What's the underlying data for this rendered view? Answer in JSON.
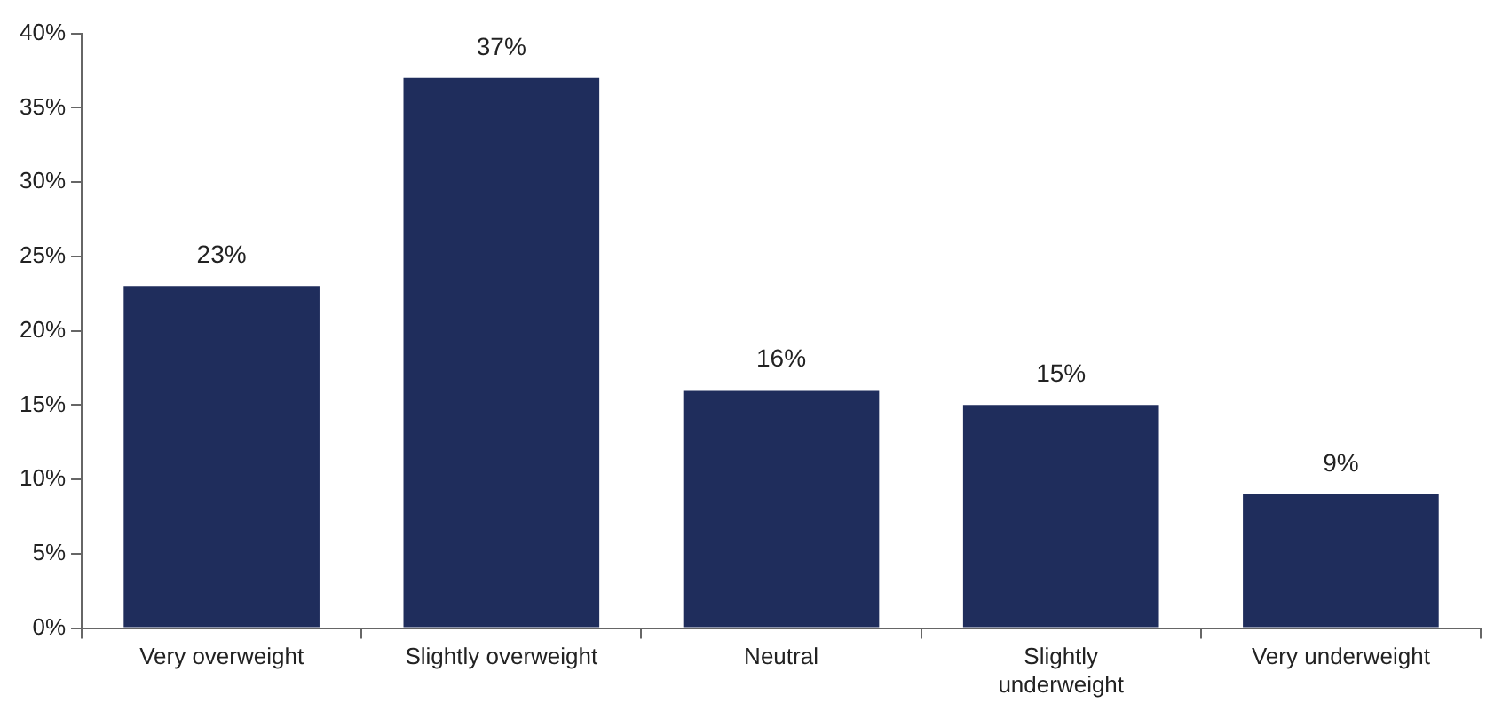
{
  "chart_data": {
    "type": "bar",
    "categories": [
      "Very overweight",
      "Slightly overweight",
      "Neutral",
      "Slightly underweight",
      "Very underweight"
    ],
    "values": [
      23,
      37,
      16,
      15,
      9
    ],
    "color": "#1f2d5c",
    "value_labels": [
      "23%",
      "37%",
      "16%",
      "15%",
      "9%"
    ],
    "ylim": [
      0,
      40
    ],
    "yticks": [
      {
        "value": 0,
        "label": "0%"
      },
      {
        "value": 5,
        "label": "5%"
      },
      {
        "value": 10,
        "label": "10%"
      },
      {
        "value": 15,
        "label": "15%"
      },
      {
        "value": 20,
        "label": "20%"
      },
      {
        "value": 25,
        "label": "25%"
      },
      {
        "value": 30,
        "label": "30%"
      },
      {
        "value": 35,
        "label": "35%"
      },
      {
        "value": 40,
        "label": "40%"
      }
    ],
    "grid": false,
    "legend": false
  }
}
